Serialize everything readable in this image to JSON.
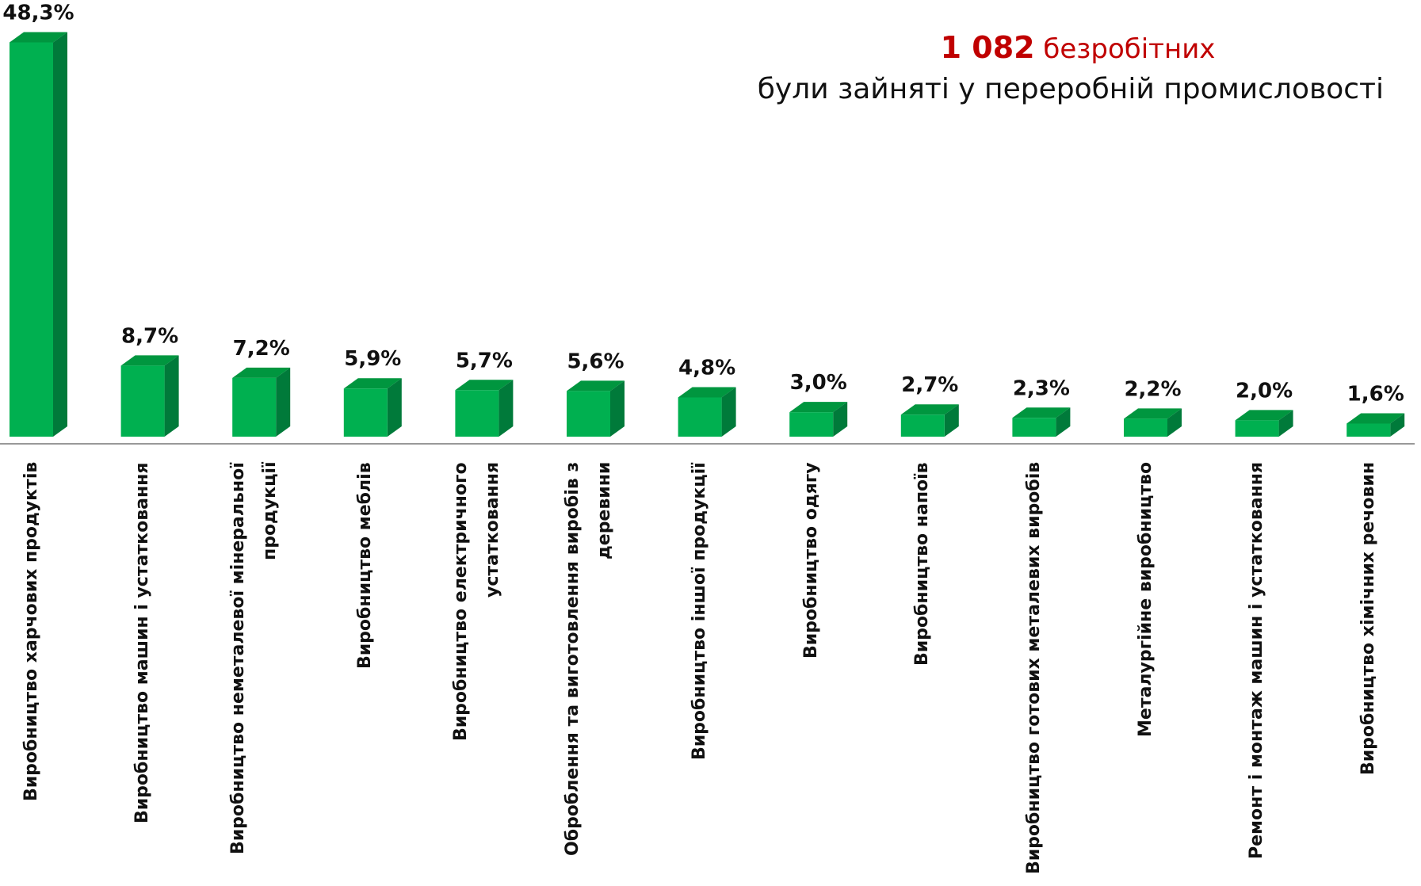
{
  "chart_data": {
    "type": "bar3d",
    "annotation": {
      "count": "1 082",
      "count_label": "безробітних",
      "text": "були зайняті у переробній промисловості"
    },
    "categories": [
      "Виробництво харчових продуктів",
      "Виробництво машин і устатковання",
      "Виробництво неметалевої мінеральної продукції",
      "Виробництво меблів",
      "Виробництво електричного устатковання",
      "Оброблення та виготовлення виробів з деревини",
      "Виробництво іншої продукції",
      "Виробництво одягу",
      "Виробництво напоїв",
      "Виробництво готових металевих виробів",
      "Металургійне виробництво",
      "Ремонт і монтаж машин і устатковання",
      "Виробництво хімічних речовин"
    ],
    "values": [
      48.3,
      8.7,
      7.2,
      5.9,
      5.7,
      5.6,
      4.8,
      3.0,
      2.7,
      2.3,
      2.2,
      2.0,
      1.6
    ],
    "value_labels": [
      "48,3%",
      "8,7%",
      "7,2%",
      "5,9%",
      "5,7%",
      "5,6%",
      "4,8%",
      "3,0%",
      "2,7%",
      "2,3%",
      "2,2%",
      "2,0%",
      "1,6%"
    ],
    "colors": {
      "front": "#00b050",
      "side": "#007a3a",
      "top": "#00963f"
    },
    "ylim": [
      0,
      50
    ]
  }
}
